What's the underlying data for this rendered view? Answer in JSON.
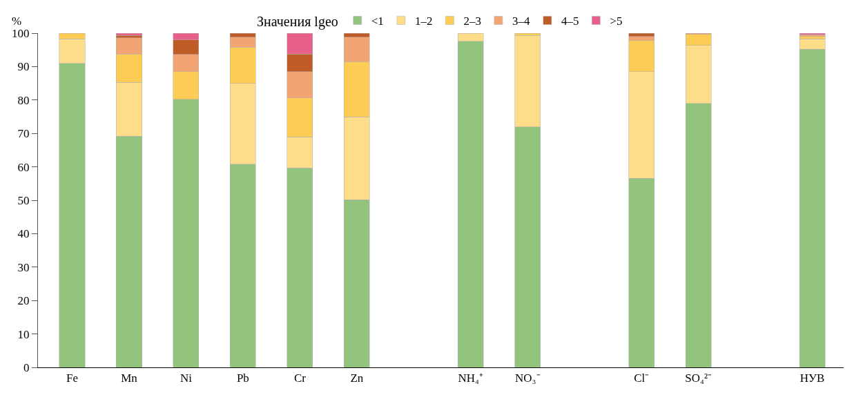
{
  "chart_data": {
    "type": "bar",
    "stacked": true,
    "ylabel": "%",
    "legend_title": "Значения lgeo",
    "legend": "top",
    "categories": [
      "Fe",
      "Mn",
      "Ni",
      "Pb",
      "Cr",
      "Zn",
      null,
      "NH₄⁺",
      "NO₃⁻",
      null,
      "Cl⁻",
      "SO₄²⁻",
      null,
      "НУВ"
    ],
    "ylim": [
      0,
      100
    ],
    "yticks": [
      0,
      10,
      20,
      30,
      40,
      50,
      60,
      70,
      80,
      90,
      100
    ],
    "series": [
      {
        "name": "<1",
        "color": "#92c47e",
        "values": [
          91,
          69.2,
          80.2,
          60.8,
          59.7,
          50.2,
          null,
          97.6,
          72,
          null,
          56.6,
          79,
          null,
          95.2
        ]
      },
      {
        "name": "1–2",
        "color": "#fddc8a",
        "values": [
          7.3,
          16.1,
          null,
          24.2,
          9.3,
          24.8,
          null,
          2.4,
          27.3,
          null,
          31.9,
          17.3,
          null,
          3.1
        ]
      },
      {
        "name": "2–3",
        "color": "#fccc55",
        "values": [
          1.7,
          8.5,
          8.3,
          10.8,
          11.6,
          16.5,
          null,
          null,
          0.7,
          null,
          9.3,
          3.3,
          null,
          0.7
        ]
      },
      {
        "name": "3–4",
        "color": "#f2a572",
        "values": [
          null,
          4.8,
          5.1,
          3,
          7.9,
          7.3,
          null,
          null,
          null,
          null,
          1.2,
          0.4,
          null,
          0.5
        ]
      },
      {
        "name": "4–5",
        "color": "#bf5b26",
        "values": [
          null,
          0.7,
          4.4,
          1.2,
          5.2,
          1.2,
          null,
          null,
          null,
          null,
          1,
          null,
          null,
          null
        ]
      },
      {
        "name": ">5",
        "color": "#e8608a",
        "values": [
          null,
          0.7,
          2,
          null,
          6.3,
          null,
          null,
          null,
          null,
          null,
          null,
          null,
          null,
          0.5
        ]
      }
    ]
  }
}
